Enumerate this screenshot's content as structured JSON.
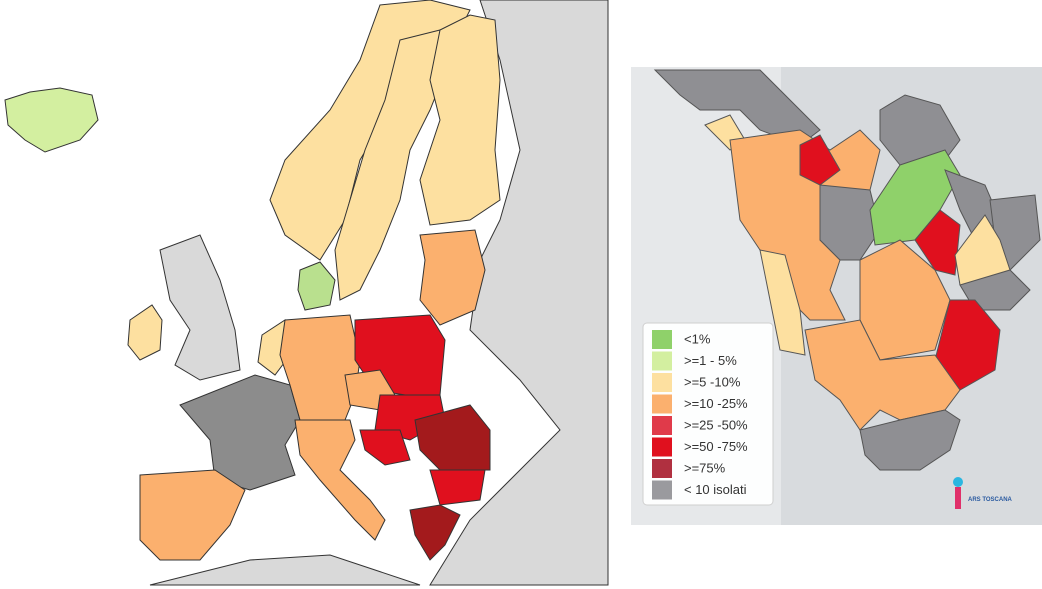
{
  "legend": {
    "items": [
      {
        "label": "<1%",
        "color": "#8fd16a"
      },
      {
        "label": ">=1 - 5%",
        "color": "#d3efa0"
      },
      {
        "label": ">=5 -10%",
        "color": "#fde0a0"
      },
      {
        "label": ">=10 -25%",
        "color": "#fbb06e"
      },
      {
        "label": ">=25 -50%",
        "color": "#e03a4a"
      },
      {
        "label": ">=50 -75%",
        "color": "#e0101e"
      },
      {
        "label": ">=75%",
        "color": "#b03040"
      },
      {
        "label": "< 10 isolati",
        "color": "#9a9a9e"
      }
    ]
  },
  "logo": {
    "text": "ARS TOSCANA"
  }
}
